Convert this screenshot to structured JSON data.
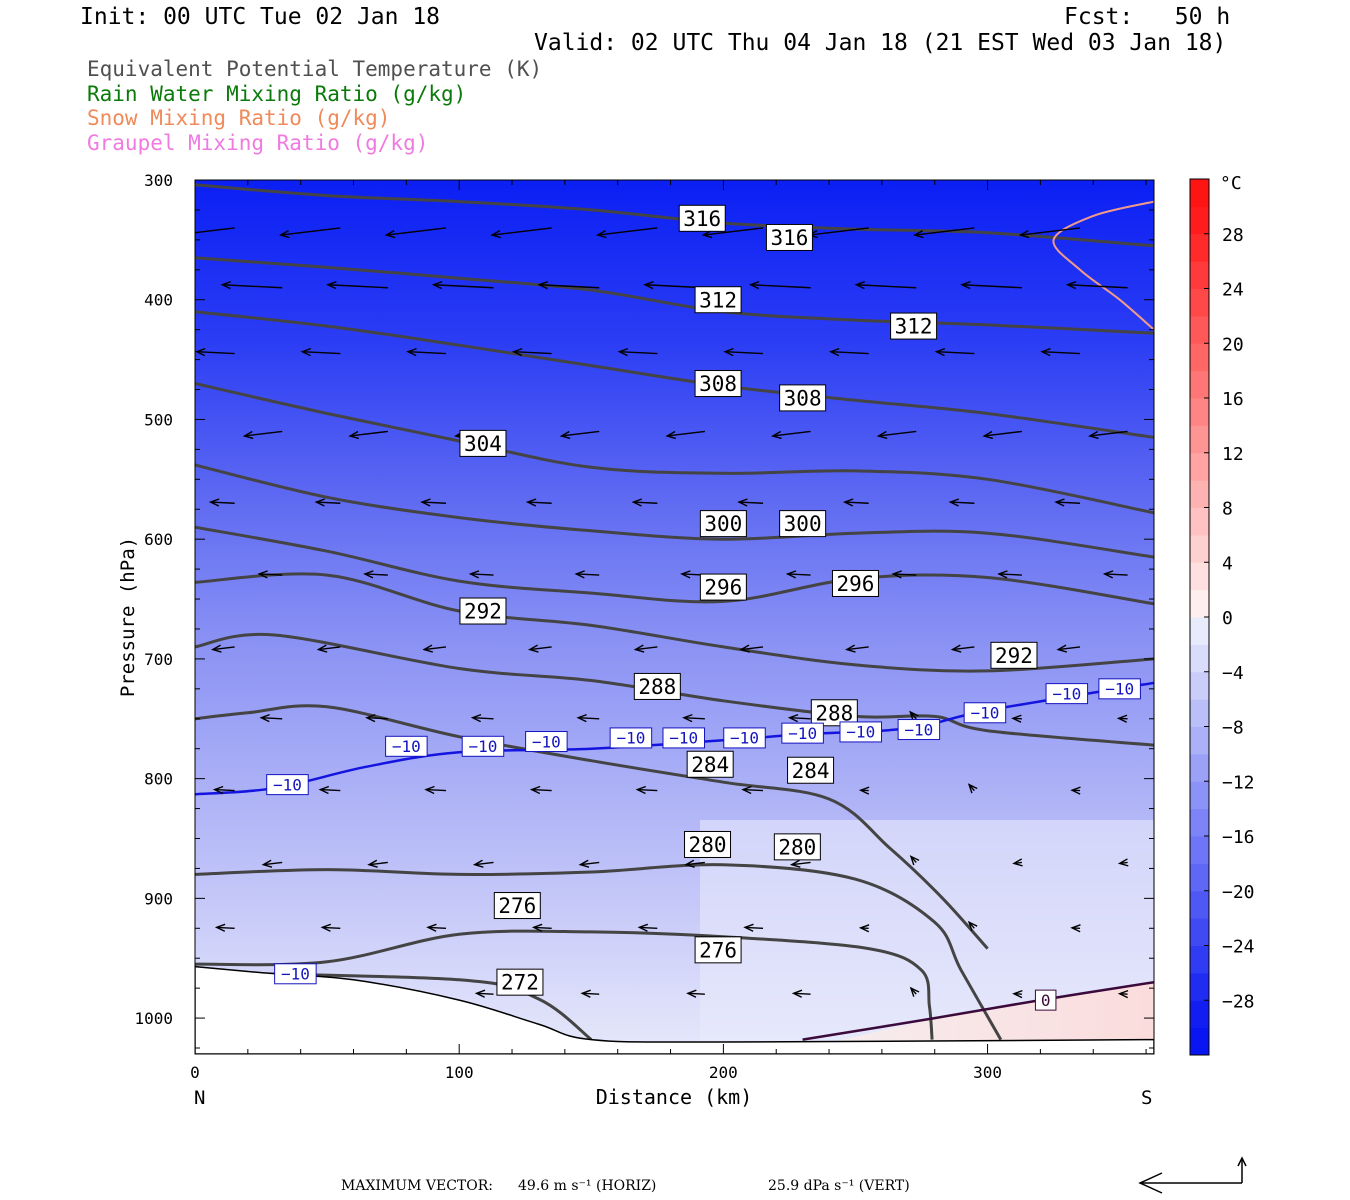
{
  "header": {
    "init": "Init: 00 UTC Tue 02 Jan 18",
    "fcst": "Fcst:   50 h",
    "valid": "Valid: 02 UTC Thu 04 Jan 18 (21 EST Wed 03 Jan 18)"
  },
  "legend": [
    {
      "label": "Equivalent Potential Temperature (K)",
      "color": "#505050"
    },
    {
      "label": "Rain Water Mixing Ratio (g/kg)",
      "color": "#0a7a0a"
    },
    {
      "label": "Snow Mixing Ratio (g/kg)",
      "color": "#f08a5a"
    },
    {
      "label": "Graupel Mixing Ratio (g/kg)",
      "color": "#f07ae0"
    }
  ],
  "chart_data": {
    "type": "cross-section",
    "xlabel": "Distance (km)",
    "ylabel": "Pressure (hPa)",
    "xlim": [
      0,
      363
    ],
    "ylim": [
      1030,
      300
    ],
    "x_ticks": [
      "0",
      "100",
      "200",
      "300"
    ],
    "y_ticks": [
      "300",
      "400",
      "500",
      "600",
      "700",
      "800",
      "900",
      "1000"
    ],
    "end_labels": {
      "left": "N",
      "right": "S"
    },
    "colorbar": {
      "unit": "°C",
      "labels": [
        "28",
        "24",
        "20",
        "16",
        "12",
        "8",
        "4",
        "0",
        "-4",
        "-8",
        "-12",
        "-16",
        "-20",
        "-24",
        "-28"
      ],
      "range": [
        -32,
        32
      ]
    },
    "theta_e_contours": [
      {
        "value": 316,
        "points": [
          [
            0,
            304
          ],
          [
            50,
            313
          ],
          [
            100,
            318
          ],
          [
            150,
            325
          ],
          [
            200,
            336
          ],
          [
            250,
            341
          ],
          [
            300,
            344
          ],
          [
            363,
            355
          ]
        ],
        "labels": [
          [
            192,
            332
          ],
          [
            225,
            348
          ]
        ]
      },
      {
        "value": 312,
        "points": [
          [
            0,
            365
          ],
          [
            50,
            373
          ],
          [
            100,
            382
          ],
          [
            150,
            392
          ],
          [
            200,
            410
          ],
          [
            250,
            417
          ],
          [
            300,
            421
          ],
          [
            363,
            428
          ]
        ],
        "labels": [
          [
            198,
            400
          ],
          [
            272,
            422
          ]
        ]
      },
      {
        "value": 308,
        "points": [
          [
            0,
            410
          ],
          [
            50,
            422
          ],
          [
            100,
            438
          ],
          [
            150,
            455
          ],
          [
            200,
            472
          ],
          [
            250,
            484
          ],
          [
            300,
            495
          ],
          [
            363,
            515
          ]
        ],
        "labels": [
          [
            198,
            470
          ],
          [
            230,
            482
          ]
        ]
      },
      {
        "value": 304,
        "points": [
          [
            0,
            470
          ],
          [
            50,
            495
          ],
          [
            100,
            518
          ],
          [
            150,
            540
          ],
          [
            200,
            545
          ],
          [
            250,
            543
          ],
          [
            300,
            550
          ],
          [
            363,
            578
          ]
        ],
        "labels": [
          [
            109,
            520
          ]
        ]
      },
      {
        "value": 300,
        "points": [
          [
            0,
            538
          ],
          [
            50,
            565
          ],
          [
            100,
            582
          ],
          [
            150,
            593
          ],
          [
            200,
            600
          ],
          [
            250,
            595
          ],
          [
            300,
            595
          ],
          [
            363,
            615
          ]
        ],
        "labels": [
          [
            200,
            587
          ],
          [
            230,
            587
          ]
        ]
      },
      {
        "value": 296,
        "points": [
          [
            0,
            590
          ],
          [
            50,
            610
          ],
          [
            100,
            635
          ],
          [
            150,
            645
          ],
          [
            200,
            652
          ],
          [
            250,
            633
          ],
          [
            300,
            632
          ],
          [
            363,
            654
          ]
        ],
        "labels": [
          [
            200,
            640
          ],
          [
            250,
            637
          ]
        ]
      },
      {
        "value": 292,
        "points": [
          [
            0,
            636
          ],
          [
            50,
            630
          ],
          [
            100,
            660
          ],
          [
            150,
            672
          ],
          [
            200,
            690
          ],
          [
            250,
            705
          ],
          [
            300,
            710
          ],
          [
            363,
            700
          ]
        ],
        "labels": [
          [
            109,
            660
          ],
          [
            310,
            697
          ]
        ]
      },
      {
        "value": 288,
        "points": [
          [
            0,
            690
          ],
          [
            30,
            680
          ],
          [
            100,
            708
          ],
          [
            150,
            718
          ],
          [
            200,
            735
          ],
          [
            250,
            748
          ],
          [
            280,
            748
          ],
          [
            300,
            760
          ],
          [
            363,
            772
          ]
        ],
        "labels": [
          [
            175,
            723
          ],
          [
            242,
            745
          ]
        ]
      },
      {
        "value": 284,
        "points": [
          [
            0,
            750
          ],
          [
            20,
            745
          ],
          [
            50,
            740
          ],
          [
            100,
            765
          ],
          [
            150,
            785
          ],
          [
            200,
            803
          ],
          [
            240,
            817
          ],
          [
            263,
            858
          ],
          [
            283,
            900
          ],
          [
            300,
            942
          ]
        ],
        "labels": [
          [
            195,
            788
          ],
          [
            233,
            793
          ]
        ]
      },
      {
        "value": 280,
        "points": [
          [
            0,
            880
          ],
          [
            50,
            876
          ],
          [
            100,
            880
          ],
          [
            150,
            878
          ],
          [
            200,
            872
          ],
          [
            250,
            884
          ],
          [
            280,
            920
          ],
          [
            290,
            960
          ],
          [
            305,
            1018
          ]
        ],
        "labels": [
          [
            194,
            855
          ],
          [
            228,
            857
          ]
        ]
      },
      {
        "value": 276,
        "points": [
          [
            0,
            955
          ],
          [
            50,
            953
          ],
          [
            100,
            930
          ],
          [
            150,
            928
          ],
          [
            200,
            932
          ],
          [
            255,
            942
          ],
          [
            275,
            960
          ],
          [
            278,
            990
          ],
          [
            279,
            1018
          ]
        ],
        "labels": [
          [
            122,
            906
          ],
          [
            198,
            943
          ]
        ]
      },
      {
        "value": 272,
        "points": [
          [
            0,
            962
          ],
          [
            100,
            968
          ],
          [
            130,
            984
          ],
          [
            150,
            1018
          ]
        ],
        "labels": [
          [
            123,
            970
          ]
        ]
      }
    ],
    "temperature_contours": [
      {
        "value": "-10",
        "points": [
          [
            0,
            813
          ],
          [
            30,
            808
          ],
          [
            65,
            790
          ],
          [
            100,
            778
          ],
          [
            150,
            775
          ],
          [
            200,
            768
          ],
          [
            230,
            763
          ],
          [
            270,
            758
          ],
          [
            300,
            743
          ],
          [
            363,
            720
          ]
        ],
        "labels": [
          [
            35,
            805
          ],
          [
            80,
            773
          ],
          [
            109,
            773
          ],
          [
            133,
            769
          ],
          [
            165,
            766
          ],
          [
            185,
            766
          ],
          [
            208,
            766
          ],
          [
            230,
            762
          ],
          [
            252,
            761
          ],
          [
            274,
            759
          ],
          [
            299,
            745
          ],
          [
            330,
            729
          ],
          [
            350,
            725
          ]
        ]
      },
      {
        "value": "-10",
        "points": [
          [
            0,
            961
          ],
          [
            20,
            970
          ],
          [
            50,
            975
          ]
        ],
        "labels": [
          [
            38,
            963
          ]
        ]
      },
      {
        "value": "0",
        "points": [
          [
            230,
            1018
          ],
          [
            280,
            1000
          ],
          [
            320,
            985
          ],
          [
            363,
            970
          ]
        ],
        "labels": [
          [
            322,
            985
          ]
        ]
      }
    ],
    "snow_contour": {
      "points": [
        [
          363,
          318
        ],
        [
          340,
          330
        ],
        [
          325,
          350
        ],
        [
          335,
          375
        ],
        [
          350,
          400
        ],
        [
          363,
          425
        ]
      ]
    }
  },
  "footer": {
    "max_label": "MAXIMUM VECTOR:",
    "horiz": "49.6 m s⁻¹ (HORIZ)",
    "vert": "25.9 dPa s⁻¹ (VERT)"
  }
}
